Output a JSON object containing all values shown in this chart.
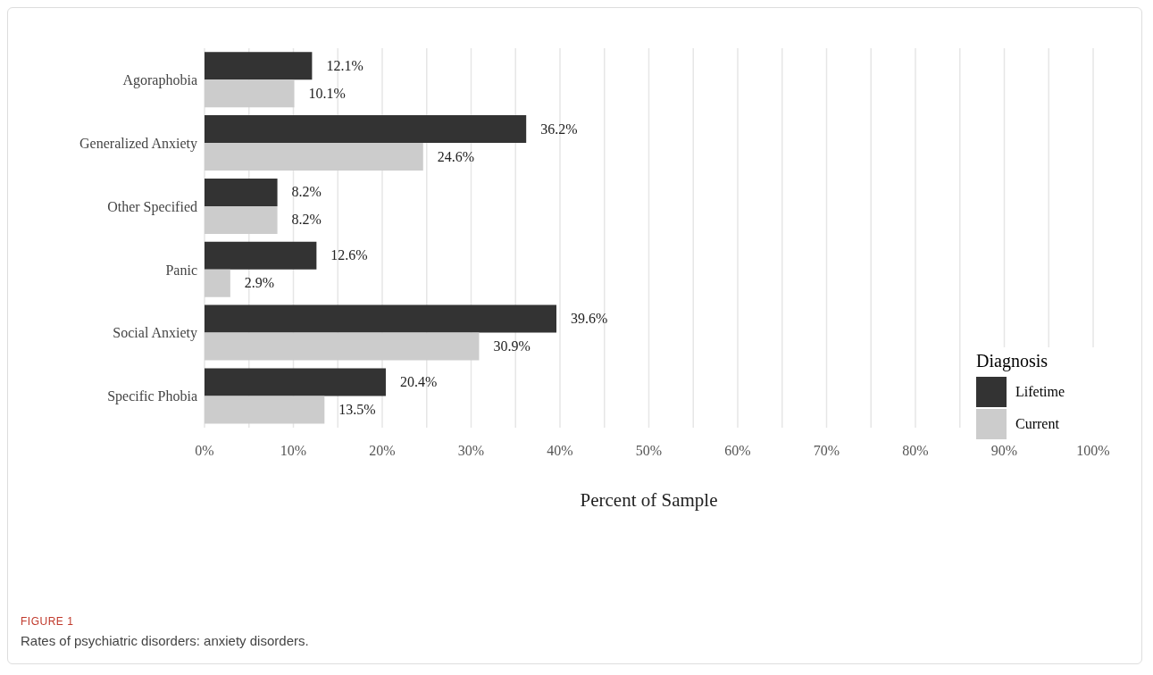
{
  "chart_data": {
    "type": "bar",
    "orientation": "horizontal",
    "categories": [
      "Agoraphobia",
      "Generalized Anxiety",
      "Other Specified",
      "Panic",
      "Social Anxiety",
      "Specific Phobia"
    ],
    "series": [
      {
        "name": "Lifetime",
        "color": "#333333",
        "values": [
          12.1,
          36.2,
          8.2,
          12.6,
          39.6,
          20.4
        ],
        "value_labels": [
          "12.1%",
          "36.2%",
          "8.2%",
          "12.6%",
          "39.6%",
          "20.4%"
        ]
      },
      {
        "name": "Current",
        "color": "#cccccc",
        "values": [
          10.1,
          24.6,
          8.2,
          2.9,
          30.9,
          13.5
        ],
        "value_labels": [
          "10.1%",
          "24.6%",
          "8.2%",
          "2.9%",
          "30.9%",
          "13.5%"
        ]
      }
    ],
    "xlim": [
      0,
      100
    ],
    "xticks": [
      {
        "value": 0,
        "label": "0%"
      },
      {
        "value": 5,
        "label": null
      },
      {
        "value": 10,
        "label": "10%"
      },
      {
        "value": 15,
        "label": null
      },
      {
        "value": 20,
        "label": "20%"
      },
      {
        "value": 25,
        "label": null
      },
      {
        "value": 30,
        "label": "30%"
      },
      {
        "value": 35,
        "label": null
      },
      {
        "value": 40,
        "label": "40%"
      },
      {
        "value": 45,
        "label": null
      },
      {
        "value": 50,
        "label": "50%"
      },
      {
        "value": 55,
        "label": null
      },
      {
        "value": 60,
        "label": "60%"
      },
      {
        "value": 65,
        "label": null
      },
      {
        "value": 70,
        "label": "70%"
      },
      {
        "value": 75,
        "label": null
      },
      {
        "value": 80,
        "label": "80%"
      },
      {
        "value": 85,
        "label": null
      },
      {
        "value": 90,
        "label": "90%"
      },
      {
        "value": 95,
        "label": null
      },
      {
        "value": 100,
        "label": "100%"
      }
    ],
    "xlabel": "Percent of Sample",
    "legend_title": "Diagnosis",
    "legend": "right",
    "grid": "x",
    "annotations": [
      "FIGURE 1",
      "Rates of psychiatric disorders: anxiety disorders."
    ]
  }
}
